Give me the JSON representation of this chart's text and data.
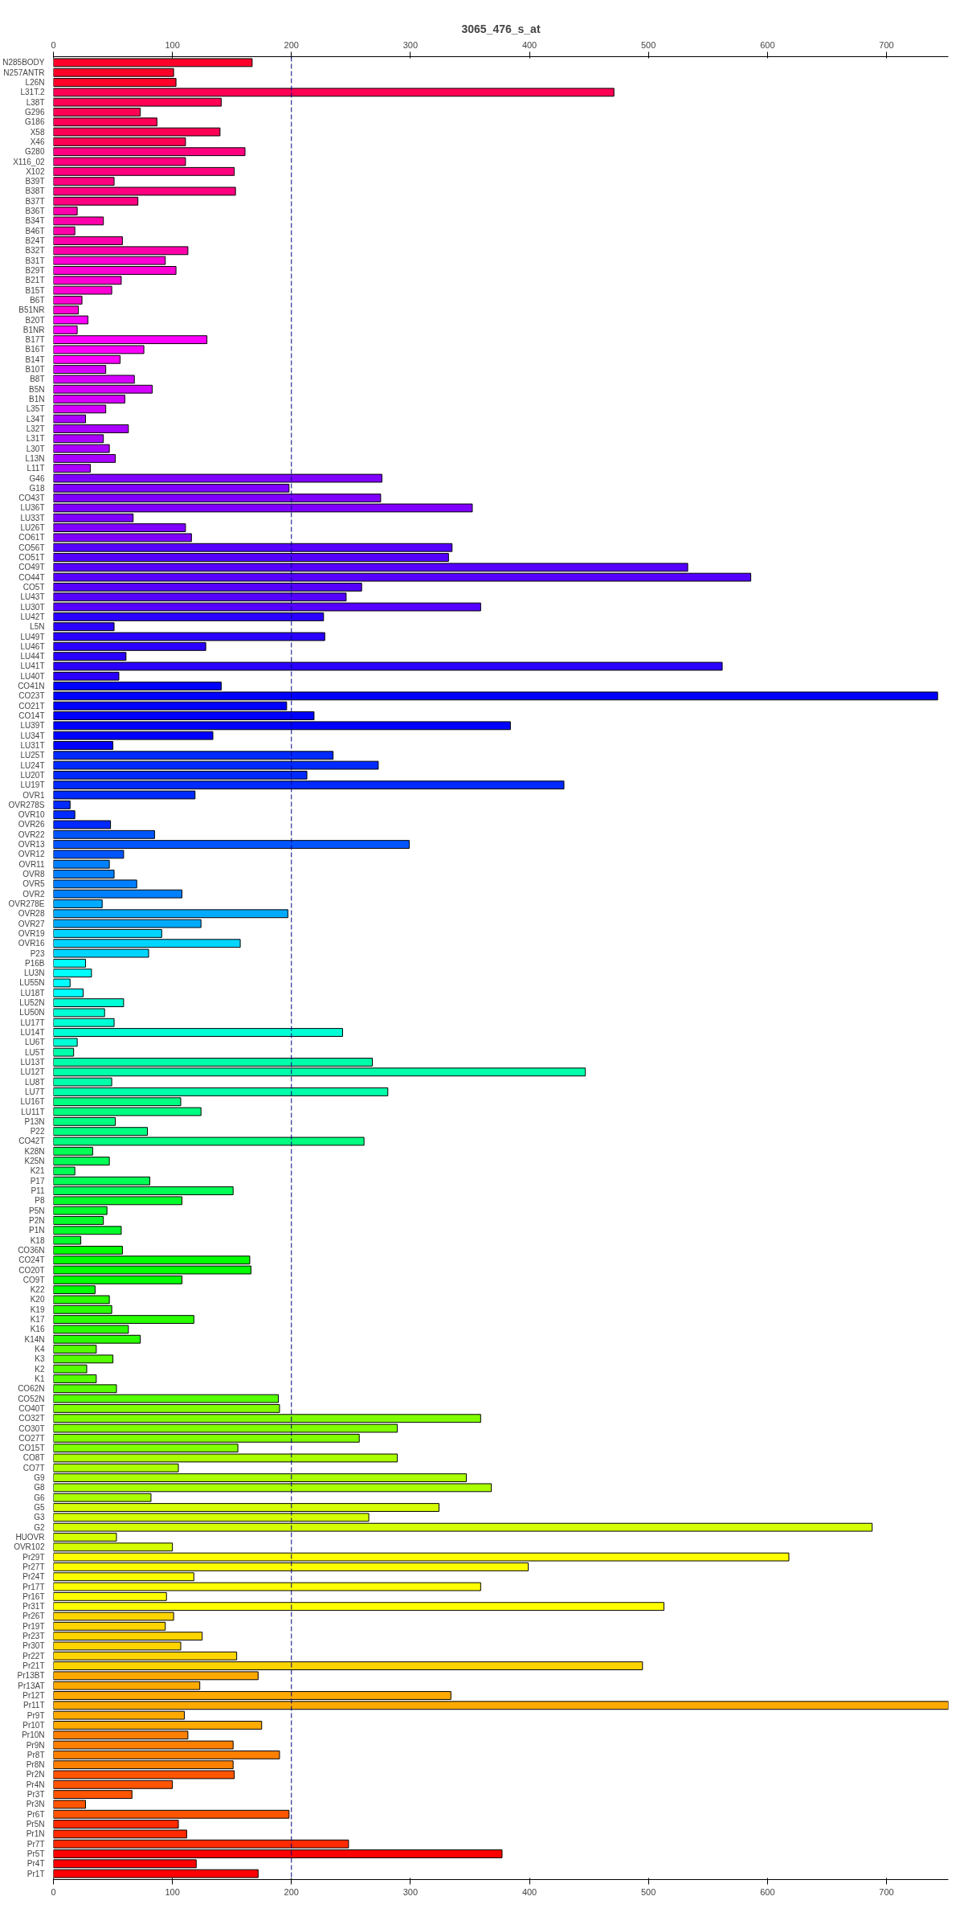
{
  "chart_data": {
    "type": "bar",
    "title": "3065_476_s_at",
    "orientation": "horizontal",
    "categories": [
      "N285BODY",
      "N257ANTR",
      "L26N",
      "L31T.2",
      "L38T",
      "G296",
      "G186",
      "X58",
      "X46",
      "G280",
      "X116_02",
      "X102",
      "B39T",
      "B38T",
      "B37T",
      "B36T",
      "B34T",
      "B46T",
      "B24T",
      "B32T",
      "B31T",
      "B29T",
      "B21T",
      "B15T",
      "B6T",
      "B51NR",
      "B20T",
      "B1NR",
      "B17T",
      "B16T",
      "B14T",
      "B10T",
      "B8T",
      "B5N",
      "B1N",
      "L35T",
      "L34T",
      "L32T",
      "L31T",
      "L30T",
      "L13N",
      "L11T",
      "G46",
      "G18",
      "CO43T",
      "LU36T",
      "LU33T",
      "LU26T",
      "CO61T",
      "CO56T",
      "CO51T",
      "CO49T",
      "CO44T",
      "CO5T",
      "LU43T",
      "LU30T",
      "LU42T",
      "L5N",
      "LU49T",
      "LU46T",
      "LU44T",
      "LU41T",
      "LU40T",
      "CO41N",
      "CO23T",
      "CO21T",
      "CO14T",
      "LU39T",
      "LU34T",
      "LU31T",
      "LU25T",
      "LU24T",
      "LU20T",
      "LU19T",
      "OVR1",
      "OVR278S",
      "OVR10",
      "OVR26",
      "OVR22",
      "OVR13",
      "OVR12",
      "OVR11",
      "OVR8",
      "OVR5",
      "OVR2",
      "OVR278E",
      "OVR28",
      "OVR27",
      "OVR19",
      "OVR16",
      "P23",
      "P16B",
      "LU3N",
      "LU55N",
      "LU18T",
      "LU52N",
      "LU50N",
      "LU17T",
      "LU14T",
      "LU6T",
      "LU5T",
      "LU13T",
      "LU12T",
      "LU8T",
      "LU7T",
      "LU16T",
      "LU11T",
      "P13N",
      "P22",
      "CO42T",
      "K28N",
      "K25N",
      "K21",
      "P17",
      "P11",
      "P8",
      "P5N",
      "P2N",
      "P1N",
      "K18",
      "CO36N",
      "CO24T",
      "CO20T",
      "CO9T",
      "K22",
      "K20",
      "K19",
      "K17",
      "K16",
      "K14N",
      "K4",
      "K3",
      "K2",
      "K1",
      "CO62N",
      "CO52N",
      "CO40T",
      "CO32T",
      "CO30T",
      "CO27T",
      "CO15T",
      "CO8T",
      "CO7T",
      "G9",
      "G8",
      "G6",
      "G5",
      "G3",
      "G2",
      "HUOVR",
      "OVR102",
      "Pr29T",
      "Pr27T",
      "Pr24T",
      "Pr17T",
      "Pr16T",
      "Pr31T",
      "Pr26T",
      "Pr19T",
      "Pr23T",
      "Pr30T",
      "Pr22T",
      "Pr21T",
      "Pr13BT",
      "Pr13AT",
      "Pr12T",
      "Pr11T",
      "Pr9T",
      "Pr10T",
      "Pr10N",
      "Pr9N",
      "Pr8T",
      "Pr8N",
      "Pr2N",
      "Pr4N",
      "Pr3T",
      "Pr3N",
      "Pr6T",
      "Pr5N",
      "Pr1N",
      "Pr7T",
      "Pr5T",
      "Pr4T",
      "Pr1T"
    ],
    "values": [
      167,
      101,
      103,
      471,
      141,
      73,
      87,
      140,
      111,
      161,
      111,
      152,
      51,
      153,
      71,
      20,
      42,
      18,
      58,
      113,
      94,
      103,
      57,
      49,
      24,
      21,
      29,
      20,
      129,
      76,
      56,
      44,
      68,
      83,
      60,
      44,
      27,
      63,
      42,
      47,
      52,
      31,
      276,
      198,
      275,
      352,
      67,
      111,
      116,
      335,
      332,
      533,
      586,
      259,
      246,
      359,
      227,
      51,
      228,
      128,
      61,
      562,
      55,
      141,
      743,
      196,
      219,
      384,
      134,
      50,
      235,
      273,
      213,
      429,
      119,
      14,
      18,
      48,
      85,
      299,
      59,
      47,
      51,
      70,
      108,
      41,
      197,
      124,
      91,
      157,
      80,
      27,
      32,
      14,
      25,
      59,
      43,
      51,
      243,
      20,
      17,
      268,
      447,
      49,
      281,
      107,
      124,
      52,
      79,
      261,
      33,
      47,
      18,
      81,
      151,
      108,
      45,
      42,
      57,
      23,
      58,
      165,
      166,
      108,
      35,
      47,
      49,
      118,
      63,
      73,
      36,
      50,
      28,
      36,
      53,
      189,
      190,
      359,
      289,
      257,
      155,
      289,
      105,
      347,
      368,
      82,
      324,
      265,
      688,
      53,
      100,
      618,
      399,
      118,
      359,
      95,
      513,
      101,
      94,
      125,
      107,
      154,
      495,
      172,
      123,
      334,
      752,
      110,
      175,
      113,
      151,
      190,
      151,
      152,
      100,
      66,
      27,
      198,
      105,
      112,
      248,
      377,
      120,
      172
    ],
    "colors": [
      "#ff002a",
      "#ff002a",
      "#ff002a",
      "#ff0055",
      "#ff0055",
      "#ff0055",
      "#ff0055",
      "#ff0055",
      "#ff0055",
      "#ff0080",
      "#ff0080",
      "#ff0080",
      "#ff0080",
      "#ff0080",
      "#ff0080",
      "#ff00aa",
      "#ff00aa",
      "#ff00aa",
      "#ff00aa",
      "#ff00aa",
      "#ff00d5",
      "#ff00d5",
      "#ff00d5",
      "#ff00d5",
      "#ff00d5",
      "#ff00d5",
      "#ff00ff",
      "#ff00ff",
      "#ff00ff",
      "#ff00ff",
      "#ff00ff",
      "#d500ff",
      "#d500ff",
      "#d500ff",
      "#d500ff",
      "#d500ff",
      "#aa00ff",
      "#aa00ff",
      "#aa00ff",
      "#aa00ff",
      "#aa00ff",
      "#aa00ff",
      "#8000ff",
      "#8000ff",
      "#8000ff",
      "#8000ff",
      "#8000ff",
      "#8000ff",
      "#8000ff",
      "#5500ff",
      "#5500ff",
      "#5500ff",
      "#5500ff",
      "#5500ff",
      "#5500ff",
      "#5500ff",
      "#2a00ff",
      "#2a00ff",
      "#2a00ff",
      "#2a00ff",
      "#2a00ff",
      "#2a00ff",
      "#2a00ff",
      "#0000ff",
      "#0000ff",
      "#0000ff",
      "#0000ff",
      "#0000ff",
      "#0000ff",
      "#0000ff",
      "#002aff",
      "#002aff",
      "#002aff",
      "#002aff",
      "#002aff",
      "#002aff",
      "#002aff",
      "#002aff",
      "#0055ff",
      "#0055ff",
      "#0055ff",
      "#0080ff",
      "#0080ff",
      "#0080ff",
      "#0080ff",
      "#00aaff",
      "#00aaff",
      "#00aaff",
      "#00d5ff",
      "#00d5ff",
      "#00d5ff",
      "#00ffff",
      "#00ffff",
      "#00ffff",
      "#00ffff",
      "#00ffd5",
      "#00ffd5",
      "#00ffd5",
      "#00ffd5",
      "#00ffd5",
      "#00ffaa",
      "#00ffaa",
      "#00ffaa",
      "#00ffaa",
      "#00ffaa",
      "#00ff80",
      "#00ff80",
      "#00ff80",
      "#00ff80",
      "#00ff80",
      "#00ff55",
      "#00ff55",
      "#00ff55",
      "#00ff55",
      "#00ff55",
      "#00ff2a",
      "#00ff2a",
      "#00ff2a",
      "#00ff2a",
      "#00ff2a",
      "#00ff00",
      "#00ff00",
      "#00ff00",
      "#00ff00",
      "#00ff00",
      "#2aff00",
      "#2aff00",
      "#2aff00",
      "#2aff00",
      "#2aff00",
      "#55ff00",
      "#55ff00",
      "#55ff00",
      "#55ff00",
      "#55ff00",
      "#55ff00",
      "#80ff00",
      "#80ff00",
      "#80ff00",
      "#80ff00",
      "#80ff00",
      "#aaff00",
      "#aaff00",
      "#aaff00",
      "#aaff00",
      "#aaff00",
      "#d5ff00",
      "#d5ff00",
      "#d5ff00",
      "#d5ff00",
      "#d5ff00",
      "#ffff00",
      "#ffff00",
      "#ffff00",
      "#ffff00",
      "#ffff00",
      "#ffff00",
      "#ffd500",
      "#ffd500",
      "#ffd500",
      "#ffd500",
      "#ffd500",
      "#ffd500",
      "#ffaa00",
      "#ffaa00",
      "#ffaa00",
      "#ffaa00",
      "#ffaa00",
      "#ffaa00",
      "#ff8000",
      "#ff8000",
      "#ff8000",
      "#ff8000",
      "#ff5500",
      "#ff5500",
      "#ff5500",
      "#ff5500",
      "#ff5500",
      "#ff2a00",
      "#ff2a00",
      "#ff2a00",
      "#ff0000",
      "#ff0000",
      "#ff0000"
    ],
    "xlim": [
      0,
      752
    ],
    "xticks": [
      0,
      100,
      200,
      300,
      400,
      500,
      600,
      700
    ],
    "x2lim": [
      0,
      752
    ],
    "x2ticks": [
      0,
      100,
      200,
      300,
      400,
      500,
      600,
      700
    ],
    "ref_lines": [
      {
        "axis": "x",
        "value": 200,
        "color": "#000080",
        "line_style": "dashed"
      }
    ],
    "grid": false
  }
}
